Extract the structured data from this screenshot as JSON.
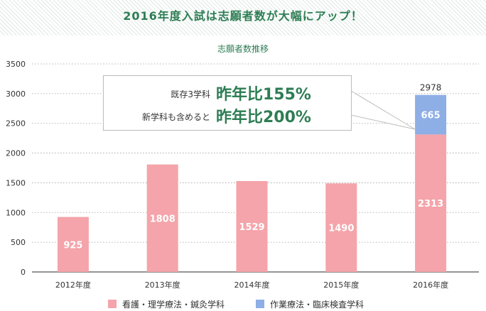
{
  "banner": {
    "title": "2016年度入試は志願者数が大幅にアップ！"
  },
  "callout": {
    "row1_label": "既存3学科",
    "row1_value": "昨年比155%",
    "row2_label": "新学科も含めると",
    "row2_value": "昨年比200%"
  },
  "colors": {
    "series1": "#f4a4aa",
    "series2": "#8eaee6",
    "accent": "#2e7d54",
    "bar_label": "#ffffff",
    "gridline": "#9e9e9e"
  },
  "chart_data": {
    "type": "bar",
    "stacked": true,
    "title": "志願者数推移",
    "xlabel": "",
    "ylabel": "",
    "categories": [
      "2012年度",
      "2013年度",
      "2014年度",
      "2015年度",
      "2016年度"
    ],
    "series": [
      {
        "name": "看護・理学療法・鍼灸学科",
        "values": [
          925,
          1808,
          1529,
          1490,
          2313
        ]
      },
      {
        "name": "作業療法・臨床検査学科",
        "values": [
          0,
          0,
          0,
          0,
          665
        ]
      }
    ],
    "totals_labels": [
      "",
      "",
      "",
      "",
      "2978"
    ],
    "ylim": [
      0,
      3500
    ],
    "yticks": [
      0,
      500,
      1000,
      1500,
      2000,
      2500,
      3000,
      3500
    ],
    "grid": true,
    "legend_position": "bottom"
  }
}
